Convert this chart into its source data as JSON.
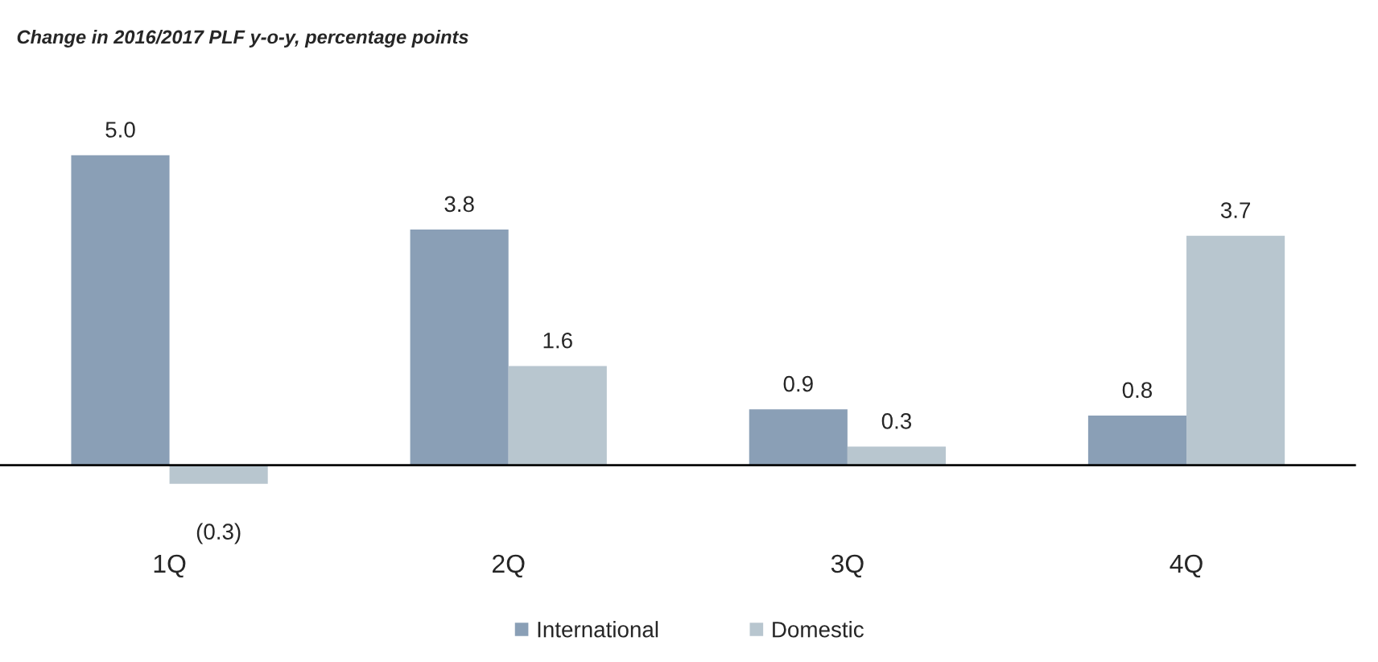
{
  "chart_data": {
    "type": "bar",
    "title": "Change in 2016/2017 PLF y-o-y, percentage points",
    "categories": [
      "1Q",
      "2Q",
      "3Q",
      "4Q"
    ],
    "series": [
      {
        "name": "International",
        "color": "#8a9fb6",
        "values": [
          5.0,
          3.8,
          0.9,
          0.8
        ],
        "value_labels": [
          "5.0",
          "3.8",
          "0.9",
          "0.8"
        ]
      },
      {
        "name": "Domestic",
        "color": "#b8c6cf",
        "values": [
          -0.3,
          1.6,
          0.3,
          3.7
        ],
        "value_labels": [
          "(0.3)",
          "1.6",
          "0.3",
          "3.7"
        ]
      }
    ],
    "legend": "bottom",
    "grid": false
  }
}
